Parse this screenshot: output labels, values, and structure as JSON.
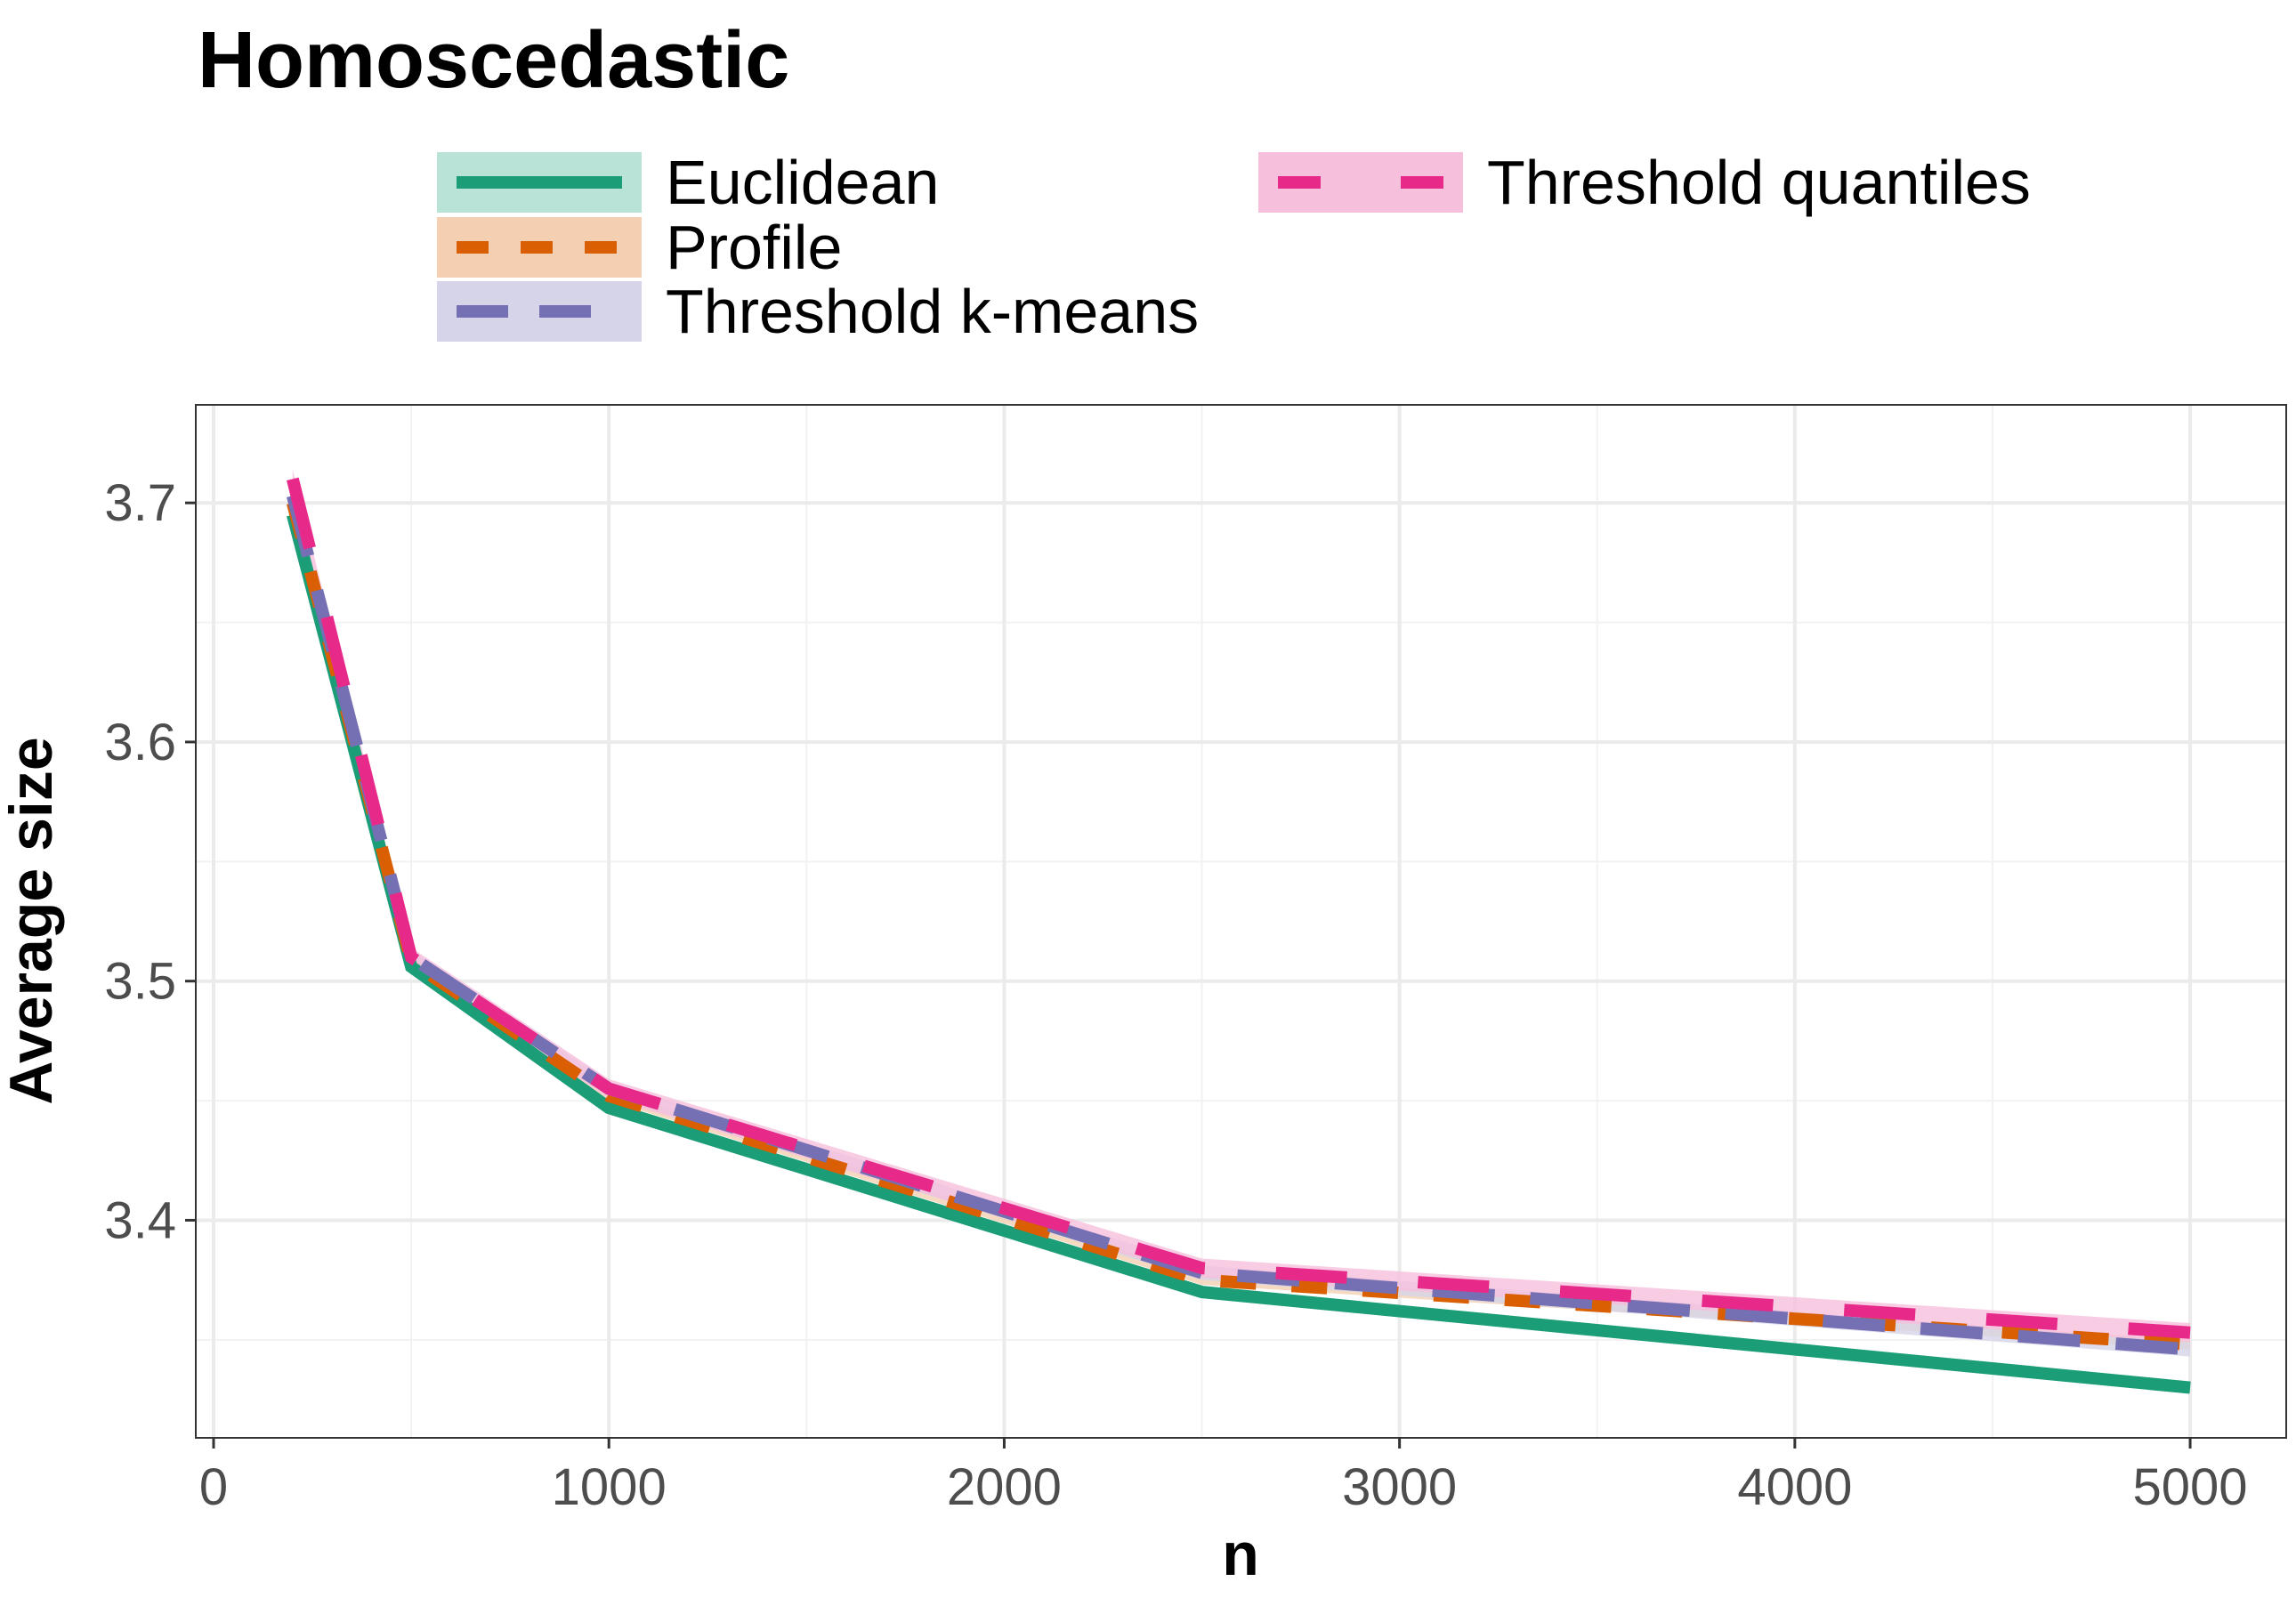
{
  "chart_data": {
    "type": "line",
    "title": "Homoscedastic",
    "xlabel": "n",
    "ylabel": "Average size",
    "xlim": [
      -45,
      5243
    ],
    "ylim": [
      3.309,
      3.741
    ],
    "x_ticks": [
      0,
      1000,
      2000,
      3000,
      4000,
      5000
    ],
    "x_tick_labels": [
      "0",
      "1000",
      "2000",
      "3000",
      "4000",
      "5000"
    ],
    "y_ticks": [
      3.4,
      3.5,
      3.6,
      3.7
    ],
    "y_tick_labels": [
      "3.4",
      "3.5",
      "3.6",
      "3.7"
    ],
    "grid": true,
    "legend_position": "top",
    "x": [
      200,
      500,
      1000,
      2500,
      5000
    ],
    "series": [
      {
        "name": "Euclidean",
        "color": "#1B9E77",
        "ribbon": "#B9E3D6",
        "dash": "solid",
        "values": [
          3.695,
          3.506,
          3.447,
          3.37,
          3.33
        ],
        "band": 0.002
      },
      {
        "name": "Profile",
        "color": "#D95F02",
        "ribbon": "#F4CFB2",
        "dash": "dashed",
        "values": [
          3.7,
          3.508,
          3.452,
          3.375,
          3.348
        ],
        "band": 0.002
      },
      {
        "name": "Threshold k-means",
        "color": "#7570B3",
        "ribbon": "#D6D4E8",
        "dash": "longdash",
        "values": [
          3.703,
          3.51,
          3.455,
          3.378,
          3.346
        ],
        "band": 0.003
      },
      {
        "name": "Threshold quantiles",
        "color": "#E7298A",
        "ribbon": "#F6BFDC",
        "dash": "longdash2",
        "values": [
          3.71,
          3.51,
          3.455,
          3.38,
          3.353
        ],
        "band": 0.004
      }
    ]
  }
}
